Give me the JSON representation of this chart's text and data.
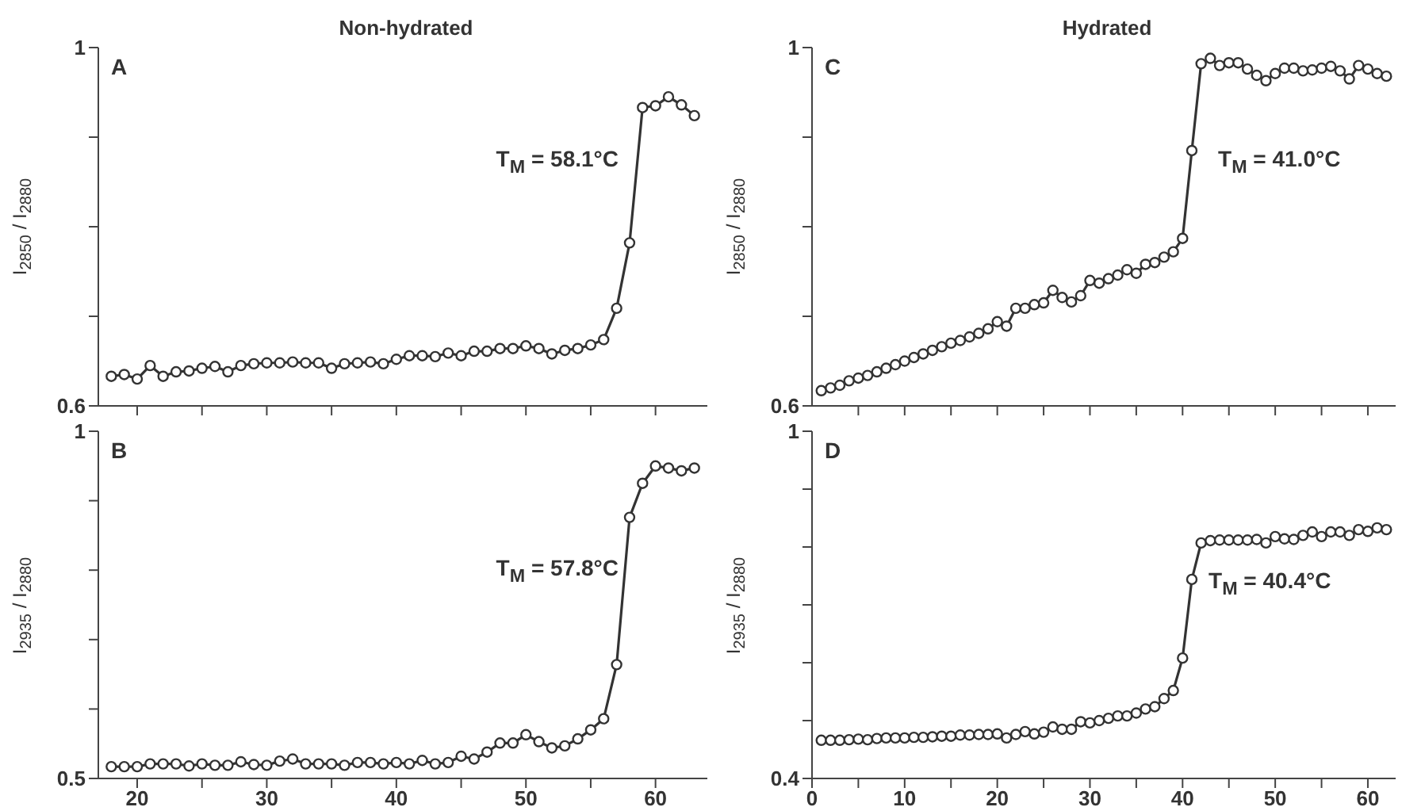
{
  "chart_data": [
    {
      "type": "line",
      "title": "Non-hydrated",
      "ylabel": "I$_{2850}$ / I$_{2880}$",
      "annotations": [
        "A",
        "T$_{M}$ = 58.1°C"
      ],
      "marker": "circle",
      "tick_labels": "y",
      "xlim": [
        17,
        64
      ],
      "ylim": [
        0.6,
        1
      ],
      "xticks": [
        {
          "value": 20,
          "label": null
        },
        {
          "value": 25,
          "label": null
        },
        {
          "value": 30,
          "label": null
        },
        {
          "value": 35,
          "label": null
        },
        {
          "value": 40,
          "label": null
        },
        {
          "value": 45,
          "label": null
        },
        {
          "value": 50,
          "label": null
        },
        {
          "value": 55,
          "label": null
        },
        {
          "value": 60,
          "label": null
        }
      ],
      "yticks": [
        0.6,
        {
          "value": 0.7,
          "label": null
        },
        {
          "value": 0.8,
          "label": null
        },
        {
          "value": 0.9,
          "label": null
        },
        1
      ],
      "x": [
        18,
        19,
        20,
        21,
        22,
        23,
        24,
        25,
        26,
        27,
        28,
        29,
        30,
        31,
        32,
        33,
        34,
        35,
        36,
        37,
        38,
        39,
        40,
        41,
        42,
        43,
        44,
        45,
        46,
        47,
        48,
        49,
        50,
        51,
        52,
        53,
        54,
        55,
        56,
        57,
        58,
        59,
        60,
        61,
        62,
        63
      ],
      "series": [
        {
          "color": "#333333",
          "values": [
            0.633,
            0.635,
            0.63,
            0.645,
            0.633,
            0.638,
            0.639,
            0.642,
            0.644,
            0.638,
            0.645,
            0.647,
            0.648,
            0.648,
            0.649,
            0.648,
            0.648,
            0.642,
            0.647,
            0.648,
            0.649,
            0.647,
            0.652,
            0.656,
            0.656,
            0.655,
            0.659,
            0.656,
            0.661,
            0.661,
            0.664,
            0.664,
            0.667,
            0.664,
            0.658,
            0.662,
            0.664,
            0.668,
            0.674,
            0.709,
            0.782,
            0.933,
            0.935,
            0.945,
            0.936,
            0.924
          ]
        }
      ]
    },
    {
      "type": "line",
      "ylabel": "I$_{2935}$ / I$_{2880}$",
      "annotations": [
        "B",
        "T$_{M}$ = 57.8°C"
      ],
      "marker": "circle",
      "xlim": [
        17,
        64
      ],
      "ylim": [
        0.5,
        1
      ],
      "xticks": [
        20,
        {
          "value": 25,
          "label": null
        },
        30,
        {
          "value": 35,
          "label": null
        },
        40,
        {
          "value": 45,
          "label": null
        },
        50,
        {
          "value": 55,
          "label": null
        },
        60
      ],
      "yticks": [
        0.5,
        {
          "value": 0.6,
          "label": null
        },
        {
          "value": 0.7,
          "label": null
        },
        {
          "value": 0.8,
          "label": null
        },
        {
          "value": 0.9,
          "label": null
        },
        1
      ],
      "x": [
        18,
        19,
        20,
        21,
        22,
        23,
        24,
        25,
        26,
        27,
        28,
        29,
        30,
        31,
        32,
        33,
        34,
        35,
        36,
        37,
        38,
        39,
        40,
        41,
        42,
        43,
        44,
        45,
        46,
        47,
        48,
        49,
        50,
        51,
        52,
        53,
        54,
        55,
        56,
        57,
        58,
        59,
        60,
        61,
        62,
        63
      ],
      "series": [
        {
          "color": "#333333",
          "values": [
            0.517,
            0.517,
            0.517,
            0.521,
            0.521,
            0.521,
            0.518,
            0.521,
            0.519,
            0.519,
            0.524,
            0.52,
            0.519,
            0.525,
            0.528,
            0.521,
            0.521,
            0.521,
            0.519,
            0.523,
            0.523,
            0.521,
            0.523,
            0.521,
            0.526,
            0.521,
            0.523,
            0.532,
            0.528,
            0.538,
            0.551,
            0.551,
            0.563,
            0.553,
            0.544,
            0.547,
            0.557,
            0.57,
            0.586,
            0.664,
            0.876,
            0.925,
            0.95,
            0.947,
            0.943,
            0.947
          ]
        }
      ]
    },
    {
      "type": "line",
      "title": "Hydrated",
      "ylabel": "I$_{2850}$ / I$_{2880}$",
      "annotations": [
        "C",
        "T$_{M}$ = 41.0°C"
      ],
      "marker": "circle",
      "tick_labels": "y",
      "xlim": [
        0,
        63
      ],
      "ylim": [
        0.6,
        1
      ],
      "xticks": [
        {
          "value": 5,
          "label": null
        },
        {
          "value": 10,
          "label": null
        },
        {
          "value": 15,
          "label": null
        },
        {
          "value": 20,
          "label": null
        },
        {
          "value": 25,
          "label": null
        },
        {
          "value": 30,
          "label": null
        },
        {
          "value": 35,
          "label": null
        },
        {
          "value": 40,
          "label": null
        },
        {
          "value": 45,
          "label": null
        },
        {
          "value": 50,
          "label": null
        },
        {
          "value": 55,
          "label": null
        },
        {
          "value": 60,
          "label": null
        }
      ],
      "yticks": [
        0.6,
        {
          "value": 0.7,
          "label": null
        },
        {
          "value": 0.8,
          "label": null
        },
        {
          "value": 0.9,
          "label": null
        },
        1
      ],
      "x": [
        1,
        2,
        3,
        4,
        5,
        6,
        7,
        8,
        9,
        10,
        11,
        12,
        13,
        14,
        15,
        16,
        17,
        18,
        19,
        20,
        21,
        22,
        23,
        24,
        25,
        26,
        27,
        28,
        29,
        30,
        31,
        32,
        33,
        34,
        35,
        36,
        37,
        38,
        39,
        40,
        41,
        42,
        43,
        44,
        45,
        46,
        47,
        48,
        49,
        50,
        51,
        52,
        53,
        54,
        55,
        56,
        57,
        58,
        59,
        60,
        61,
        62
      ],
      "series": [
        {
          "color": "#333333",
          "values": [
            0.617,
            0.62,
            0.623,
            0.628,
            0.631,
            0.634,
            0.638,
            0.642,
            0.646,
            0.65,
            0.654,
            0.658,
            0.662,
            0.666,
            0.67,
            0.673,
            0.677,
            0.681,
            0.686,
            0.694,
            0.689,
            0.709,
            0.709,
            0.713,
            0.715,
            0.729,
            0.721,
            0.716,
            0.723,
            0.74,
            0.737,
            0.742,
            0.746,
            0.752,
            0.748,
            0.758,
            0.76,
            0.766,
            0.772,
            0.787,
            0.885,
            0.982,
            0.988,
            0.98,
            0.983,
            0.983,
            0.976,
            0.969,
            0.963,
            0.971,
            0.977,
            0.977,
            0.974,
            0.975,
            0.977,
            0.979,
            0.974,
            0.965,
            0.98,
            0.976,
            0.971,
            0.968
          ]
        }
      ]
    },
    {
      "type": "line",
      "ylabel": "I$_{2935}$ / I$_{2880}$",
      "annotations": [
        "D",
        "T$_{M}$ = 40.4°C"
      ],
      "marker": "circle",
      "xlim": [
        0,
        63
      ],
      "ylim": [
        0.4,
        1
      ],
      "xticks": [
        0,
        {
          "value": 5,
          "label": null
        },
        10,
        {
          "value": 15,
          "label": null
        },
        20,
        {
          "value": 25,
          "label": null
        },
        30,
        {
          "value": 35,
          "label": null
        },
        40,
        {
          "value": 45,
          "label": null
        },
        50,
        {
          "value": 55,
          "label": null
        },
        60
      ],
      "yticks": [
        0.4,
        {
          "value": 0.5,
          "label": null
        },
        {
          "value": 0.6,
          "label": null
        },
        {
          "value": 0.7,
          "label": null
        },
        {
          "value": 0.8,
          "label": null
        },
        {
          "value": 0.9,
          "label": null
        },
        1
      ],
      "x": [
        1,
        2,
        3,
        4,
        5,
        6,
        7,
        8,
        9,
        10,
        11,
        12,
        13,
        14,
        15,
        16,
        17,
        18,
        19,
        20,
        21,
        22,
        23,
        24,
        25,
        26,
        27,
        28,
        29,
        30,
        31,
        32,
        33,
        34,
        35,
        36,
        37,
        38,
        39,
        40,
        41,
        42,
        43,
        44,
        45,
        46,
        47,
        48,
        49,
        50,
        51,
        52,
        53,
        54,
        55,
        56,
        57,
        58,
        59,
        60,
        61,
        62
      ],
      "series": [
        {
          "color": "#333333",
          "values": [
            0.466,
            0.466,
            0.466,
            0.467,
            0.468,
            0.467,
            0.469,
            0.47,
            0.47,
            0.47,
            0.471,
            0.471,
            0.472,
            0.473,
            0.473,
            0.475,
            0.475,
            0.476,
            0.476,
            0.477,
            0.47,
            0.476,
            0.481,
            0.477,
            0.48,
            0.489,
            0.485,
            0.485,
            0.498,
            0.496,
            0.5,
            0.504,
            0.508,
            0.508,
            0.513,
            0.52,
            0.524,
            0.538,
            0.552,
            0.608,
            0.744,
            0.807,
            0.811,
            0.812,
            0.812,
            0.812,
            0.812,
            0.813,
            0.807,
            0.818,
            0.814,
            0.813,
            0.82,
            0.826,
            0.818,
            0.826,
            0.826,
            0.82,
            0.83,
            0.827,
            0.833,
            0.83
          ]
        }
      ]
    }
  ]
}
